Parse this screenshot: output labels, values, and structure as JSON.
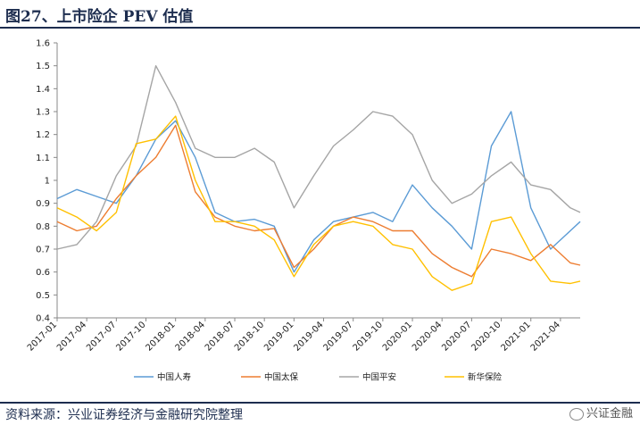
{
  "header": {
    "title": "图27、上市险企 PEV 估值"
  },
  "footer": {
    "source": "资料来源：兴业证券经济与金融研究院整理",
    "watermark": "兴证金融"
  },
  "chart_data": {
    "type": "line",
    "title": "图27、上市险企 PEV 估值",
    "xlabel": "",
    "ylabel": "",
    "ylim": [
      0.4,
      1.6
    ],
    "y_ticks": [
      "0.4",
      "0.5",
      "0.6",
      "0.7",
      "0.8",
      "0.9",
      "1",
      "1.1",
      "1.2",
      "1.3",
      "1.4",
      "1.5",
      "1.6"
    ],
    "x_ticks": [
      "2017-01",
      "2017-04",
      "2017-07",
      "2017-10",
      "2018-01",
      "2018-04",
      "2018-07",
      "2018-10",
      "2019-01",
      "2019-04",
      "2019-07",
      "2019-10",
      "2020-01",
      "2020-04",
      "2020-07",
      "2020-10",
      "2021-01",
      "2021-04"
    ],
    "legend_position": "bottom",
    "grid": false,
    "x": [
      "2017-01",
      "2017-03",
      "2017-05",
      "2017-07",
      "2017-09",
      "2017-11",
      "2018-01",
      "2018-03",
      "2018-05",
      "2018-07",
      "2018-09",
      "2018-11",
      "2019-01",
      "2019-03",
      "2019-05",
      "2019-07",
      "2019-09",
      "2019-11",
      "2020-01",
      "2020-03",
      "2020-05",
      "2020-07",
      "2020-09",
      "2020-11",
      "2021-01",
      "2021-03",
      "2021-05",
      "2021-06"
    ],
    "series": [
      {
        "name": "中国人寿",
        "color": "#5b9bd5",
        "values": [
          0.92,
          0.96,
          0.93,
          0.9,
          1.02,
          1.18,
          1.26,
          1.1,
          0.86,
          0.82,
          0.83,
          0.8,
          0.6,
          0.74,
          0.82,
          0.84,
          0.86,
          0.82,
          0.98,
          0.88,
          0.8,
          0.7,
          1.15,
          1.3,
          0.88,
          0.7,
          0.78,
          0.82
        ]
      },
      {
        "name": "中国太保",
        "color": "#ed7d31",
        "values": [
          0.82,
          0.78,
          0.8,
          0.92,
          1.02,
          1.1,
          1.24,
          0.95,
          0.84,
          0.8,
          0.78,
          0.79,
          0.62,
          0.7,
          0.8,
          0.84,
          0.82,
          0.78,
          0.78,
          0.68,
          0.62,
          0.58,
          0.7,
          0.68,
          0.65,
          0.72,
          0.64,
          0.63
        ]
      },
      {
        "name": "中国平安",
        "color": "#a5a5a5",
        "values": [
          0.7,
          0.72,
          0.82,
          1.02,
          1.15,
          1.5,
          1.34,
          1.14,
          1.1,
          1.1,
          1.14,
          1.08,
          0.88,
          1.02,
          1.15,
          1.22,
          1.3,
          1.28,
          1.2,
          1.0,
          0.9,
          0.94,
          1.02,
          1.08,
          0.98,
          0.96,
          0.88,
          0.86
        ]
      },
      {
        "name": "新华保险",
        "color": "#ffc000",
        "values": [
          0.88,
          0.84,
          0.78,
          0.86,
          1.16,
          1.18,
          1.28,
          1.0,
          0.82,
          0.82,
          0.8,
          0.74,
          0.58,
          0.72,
          0.8,
          0.82,
          0.8,
          0.72,
          0.7,
          0.58,
          0.52,
          0.55,
          0.82,
          0.84,
          0.68,
          0.56,
          0.55,
          0.56
        ]
      }
    ]
  }
}
